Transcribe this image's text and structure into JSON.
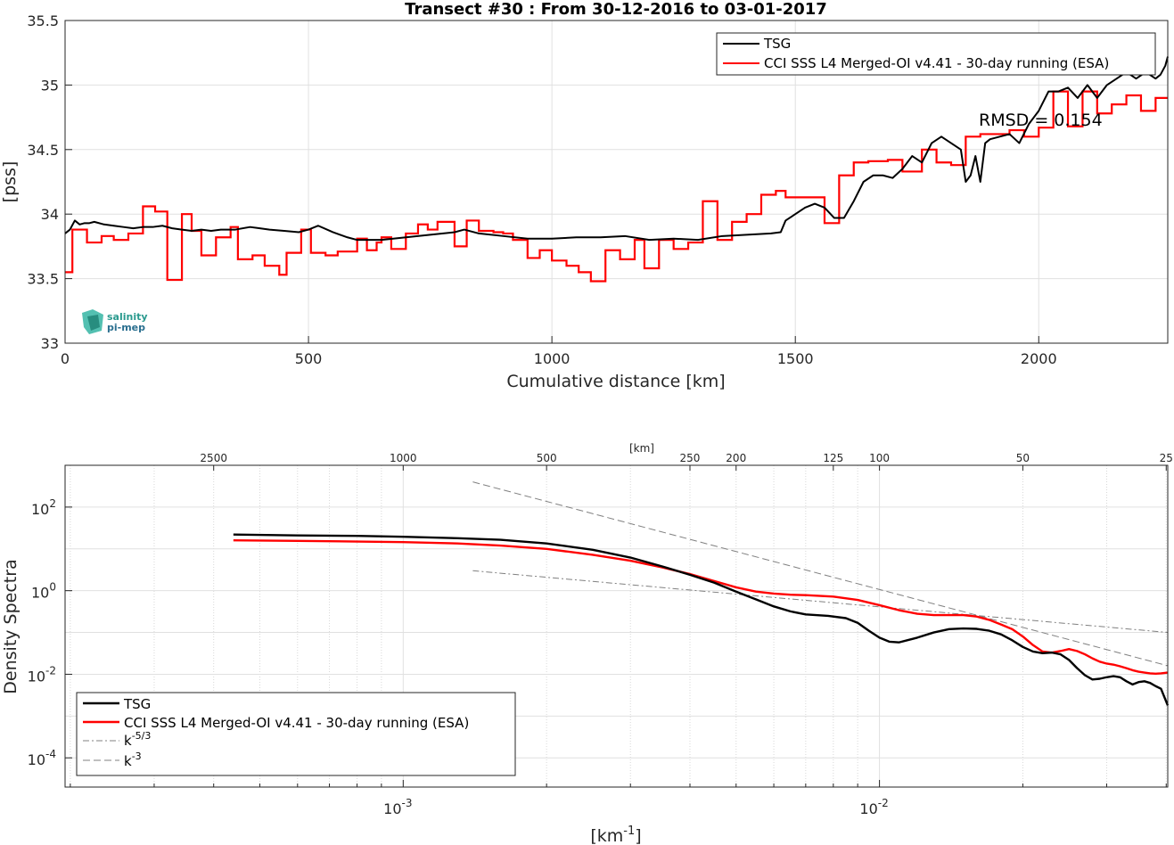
{
  "colors": {
    "tsg": "#000000",
    "cci": "#ff0000",
    "ref": "#808080",
    "grid": "#e0e0e0",
    "logo": "#2aa69a"
  },
  "logo": {
    "line1": "salinity",
    "line2": "pi-mep"
  },
  "chart_data": [
    {
      "type": "line",
      "title": "Transect #30 : From 30-12-2016 to 03-01-2017",
      "xlabel": "Cumulative distance [km]",
      "ylabel": "[pss]",
      "xlim": [
        0,
        2265
      ],
      "ylim": [
        33,
        35.5
      ],
      "xticks": [
        0,
        500,
        1000,
        1500,
        2000
      ],
      "xtick_labels": [
        "0",
        "500",
        "1000",
        "1500",
        "2000"
      ],
      "yticks": [
        33,
        33.5,
        34,
        34.5,
        35,
        35.5
      ],
      "ytick_labels": [
        "33",
        "33.5",
        "34",
        "34.5",
        "35",
        "35.5"
      ],
      "grid": true,
      "legend_position": "top-right",
      "annotation": "RMSD = 0.154",
      "series": [
        {
          "name": "TSG",
          "x": [
            0,
            10,
            20,
            30,
            40,
            50,
            60,
            80,
            100,
            120,
            140,
            160,
            180,
            200,
            220,
            240,
            260,
            280,
            300,
            320,
            350,
            380,
            400,
            420,
            450,
            480,
            500,
            520,
            550,
            580,
            600,
            650,
            700,
            750,
            800,
            820,
            850,
            900,
            950,
            1000,
            1050,
            1100,
            1150,
            1200,
            1250,
            1300,
            1350,
            1400,
            1450,
            1470,
            1480,
            1500,
            1520,
            1540,
            1560,
            1580,
            1600,
            1620,
            1640,
            1660,
            1680,
            1700,
            1720,
            1740,
            1760,
            1780,
            1800,
            1820,
            1840,
            1850,
            1860,
            1870,
            1880,
            1890,
            1900,
            1920,
            1940,
            1960,
            1980,
            2000,
            2020,
            2040,
            2060,
            2080,
            2100,
            2120,
            2140,
            2160,
            2180,
            2200,
            2220,
            2240,
            2250,
            2260,
            2265
          ],
          "values": [
            33.85,
            33.88,
            33.95,
            33.92,
            33.93,
            33.93,
            33.94,
            33.92,
            33.91,
            33.9,
            33.89,
            33.9,
            33.9,
            33.91,
            33.89,
            33.88,
            33.87,
            33.88,
            33.87,
            33.88,
            33.88,
            33.9,
            33.89,
            33.88,
            33.87,
            33.86,
            33.88,
            33.91,
            33.86,
            33.82,
            33.8,
            33.8,
            33.82,
            33.84,
            33.86,
            33.88,
            33.85,
            33.83,
            33.81,
            33.81,
            33.82,
            33.82,
            33.83,
            33.8,
            33.81,
            33.8,
            33.83,
            33.84,
            33.85,
            33.86,
            33.95,
            34,
            34.05,
            34.08,
            34.05,
            33.97,
            33.97,
            34.1,
            34.25,
            34.3,
            34.3,
            34.28,
            34.35,
            34.45,
            34.4,
            34.55,
            34.6,
            34.55,
            34.5,
            34.25,
            34.3,
            34.45,
            34.25,
            34.55,
            34.58,
            34.6,
            34.62,
            34.55,
            34.7,
            34.8,
            34.95,
            34.95,
            34.98,
            34.9,
            35,
            34.9,
            35,
            35.05,
            35.1,
            35.05,
            35.1,
            35.05,
            35.08,
            35.15,
            35.22
          ]
        },
        {
          "name": "CCI SSS L4 Merged-OI v4.41 - 30-day running (ESA)",
          "step": true,
          "x": [
            0,
            15,
            45,
            75,
            100,
            130,
            160,
            185,
            210,
            240,
            260,
            280,
            310,
            340,
            355,
            385,
            410,
            440,
            455,
            485,
            505,
            535,
            560,
            600,
            620,
            640,
            650,
            670,
            700,
            725,
            745,
            765,
            800,
            825,
            850,
            880,
            900,
            920,
            950,
            975,
            1000,
            1030,
            1055,
            1080,
            1110,
            1140,
            1170,
            1190,
            1220,
            1250,
            1280,
            1310,
            1340,
            1370,
            1400,
            1430,
            1460,
            1480,
            1520,
            1560,
            1590,
            1620,
            1650,
            1690,
            1720,
            1760,
            1790,
            1820,
            1850,
            1880,
            1910,
            1940,
            1970,
            2000,
            2030,
            2060,
            2090,
            2120,
            2150,
            2180,
            2210,
            2240,
            2265
          ],
          "values": [
            33.55,
            33.88,
            33.78,
            33.83,
            33.8,
            33.85,
            34.06,
            34.02,
            33.49,
            34,
            33.87,
            33.68,
            33.82,
            33.9,
            33.65,
            33.68,
            33.6,
            33.53,
            33.7,
            33.88,
            33.7,
            33.68,
            33.71,
            33.81,
            33.72,
            33.78,
            33.82,
            33.73,
            33.85,
            33.92,
            33.88,
            33.94,
            33.75,
            33.95,
            33.87,
            33.86,
            33.85,
            33.8,
            33.66,
            33.72,
            33.64,
            33.6,
            33.55,
            33.48,
            33.72,
            33.65,
            33.8,
            33.58,
            33.8,
            33.73,
            33.78,
            34.1,
            33.8,
            33.94,
            34,
            34.15,
            34.18,
            34.13,
            34.13,
            33.93,
            34.3,
            34.4,
            34.41,
            34.42,
            34.33,
            34.5,
            34.4,
            34.38,
            34.6,
            34.62,
            34.62,
            34.65,
            34.6,
            34.67,
            34.95,
            34.68,
            34.95,
            34.78,
            34.85,
            34.92,
            34.8,
            34.9,
            34.9
          ]
        }
      ]
    },
    {
      "type": "line",
      "title": "",
      "xlabel": "[km",
      "xlabel_sup": "-1",
      "xlabel_tail": "]",
      "ylabel": "Density Spectra",
      "top_axis_label": "[km]",
      "xscale": "log",
      "yscale": "log",
      "xlim": [
        0.000195,
        0.0403
      ],
      "ylim": [
        2e-05,
        1000
      ],
      "xticks": [
        0.001,
        0.01
      ],
      "xtick_labels": [
        {
          "base": "10",
          "exp": "-3"
        },
        {
          "base": "10",
          "exp": "-2"
        }
      ],
      "yticks": [
        0.0001,
        0.01,
        1,
        100
      ],
      "ytick_labels": [
        {
          "base": "10",
          "exp": "-4"
        },
        {
          "base": "10",
          "exp": "-2"
        },
        {
          "base": "10",
          "exp": "0"
        },
        {
          "base": "10",
          "exp": "2"
        }
      ],
      "top_ticks_km": [
        2500,
        1000,
        500,
        250,
        200,
        125,
        100,
        50,
        25
      ],
      "top_tick_labels": [
        "2500",
        "1000",
        "500",
        "250",
        "200",
        "125",
        "100",
        "50",
        "25"
      ],
      "grid": true,
      "legend_position": "bottom-left",
      "series": [
        {
          "name": "TSG",
          "x": [
            0.00044,
            0.0006,
            0.0008,
            0.001,
            0.0013,
            0.0016,
            0.002,
            0.0025,
            0.003,
            0.0035,
            0.004,
            0.0045,
            0.005,
            0.0055,
            0.006,
            0.0065,
            0.007,
            0.0078,
            0.0085,
            0.009,
            0.0095,
            0.01,
            0.0105,
            0.011,
            0.012,
            0.013,
            0.014,
            0.015,
            0.016,
            0.017,
            0.018,
            0.019,
            0.02,
            0.021,
            0.022,
            0.023,
            0.024,
            0.025,
            0.026,
            0.027,
            0.028,
            0.029,
            0.03,
            0.031,
            0.032,
            0.033,
            0.034,
            0.035,
            0.036,
            0.037,
            0.038,
            0.039,
            0.0403
          ],
          "values": [
            22,
            21,
            20.5,
            19.5,
            18,
            16.5,
            13.5,
            9.5,
            6.2,
            3.8,
            2.4,
            1.55,
            0.95,
            0.62,
            0.42,
            0.32,
            0.27,
            0.25,
            0.22,
            0.17,
            0.11,
            0.075,
            0.06,
            0.058,
            0.075,
            0.1,
            0.12,
            0.125,
            0.122,
            0.11,
            0.09,
            0.065,
            0.045,
            0.035,
            0.032,
            0.033,
            0.03,
            0.022,
            0.014,
            0.0095,
            0.0075,
            0.0078,
            0.0085,
            0.009,
            0.0085,
            0.0068,
            0.0057,
            0.0065,
            0.0068,
            0.0062,
            0.0052,
            0.0045,
            0.0018
          ]
        },
        {
          "name": "CCI SSS L4 Merged-OI v4.41 - 30-day running (ESA)",
          "x": [
            0.00044,
            0.0006,
            0.0008,
            0.001,
            0.0013,
            0.0016,
            0.002,
            0.0025,
            0.003,
            0.0035,
            0.004,
            0.0045,
            0.005,
            0.0055,
            0.006,
            0.0065,
            0.007,
            0.008,
            0.009,
            0.01,
            0.011,
            0.012,
            0.013,
            0.014,
            0.015,
            0.016,
            0.017,
            0.018,
            0.019,
            0.02,
            0.021,
            0.022,
            0.023,
            0.024,
            0.025,
            0.026,
            0.027,
            0.028,
            0.029,
            0.03,
            0.031,
            0.032,
            0.033,
            0.034,
            0.035,
            0.036,
            0.037,
            0.038,
            0.039,
            0.0403
          ],
          "values": [
            16,
            15.5,
            15,
            14.5,
            13.5,
            12,
            10,
            7.2,
            5.2,
            3.6,
            2.5,
            1.7,
            1.2,
            0.95,
            0.85,
            0.8,
            0.78,
            0.72,
            0.6,
            0.45,
            0.34,
            0.28,
            0.26,
            0.26,
            0.26,
            0.24,
            0.2,
            0.155,
            0.12,
            0.08,
            0.05,
            0.035,
            0.033,
            0.036,
            0.04,
            0.036,
            0.03,
            0.024,
            0.02,
            0.018,
            0.017,
            0.0155,
            0.014,
            0.0125,
            0.0115,
            0.011,
            0.0105,
            0.0103,
            0.0105,
            0.011
          ]
        },
        {
          "name": "k",
          "name_sup": "-5/3",
          "style": "dashdot",
          "x": [
            0.0014,
            0.0403
          ],
          "values": [
            3.0,
            0.1
          ]
        },
        {
          "name": "k",
          "name_sup": "-3",
          "style": "dashed",
          "x": [
            0.0014,
            0.0403
          ],
          "values": [
            400,
            0.016
          ]
        }
      ]
    }
  ]
}
